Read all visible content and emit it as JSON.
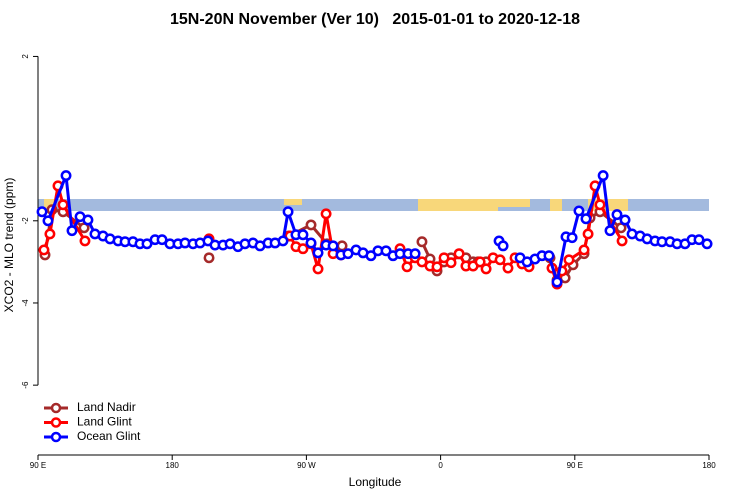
{
  "chart_data": {
    "type": "line",
    "title": "15N-20N November (Ver 10)   2015-01-01 to 2020-12-18",
    "x_label": "Longitude",
    "y_label": "XCO2 - MLO trend (ppm)",
    "xlim": [
      90,
      540
    ],
    "xticks": [
      {
        "value": 90,
        "label": "90 E"
      },
      180,
      {
        "value": 270,
        "label": "90 W"
      },
      {
        "value": 360,
        "label": "0"
      },
      {
        "value": 450,
        "label": "90 E"
      },
      {
        "value": 540,
        "label": "180"
      }
    ],
    "ylim": [
      -7.7,
      2.4
    ],
    "yticks": [
      2,
      -2,
      -4,
      -6
    ],
    "legend": "lower left",
    "series": [
      {
        "name": "Land Nadir",
        "color": "#a52a2a",
        "x": [
          94.7,
          99.4,
          106.8,
          120.9,
          null,
          204.7,
          null,
          258.3,
          273.1,
          283.8,
          293.9,
          null,
          347.5,
          352.9,
          357.6,
          362.3,
          367,
          377,
          381.8,
          385.1,
          390.5,
          null,
          433.4,
          438.1,
          443.5,
          448.8,
          456.2,
          460.2,
          466.9,
          481
        ],
        "values": [
          -2.83,
          -1.73,
          -1.78,
          -2.17,
          null,
          -2.9,
          null,
          -2.37,
          -2.1,
          -2.56,
          -2.61,
          null,
          -2.51,
          -2.93,
          -3.22,
          -3.0,
          -2.9,
          -2.9,
          -3.0,
          -3.0,
          -3.0,
          null,
          -2.9,
          -3.44,
          -3.39,
          -3.07,
          -2.8,
          -1.93,
          -1.78,
          -2.17
        ]
      },
      {
        "name": "Land Glint",
        "color": "#ff0000",
        "x": [
          94,
          98,
          103.4,
          106.8,
          121.5,
          null,
          204.7,
          null,
          259,
          263,
          267.7,
          273.1,
          277.8,
          283.2,
          287.9,
          293.2,
          null,
          332.8,
          337.5,
          342.9,
          347.5,
          352.9,
          357.6,
          362.3,
          367,
          372.4,
          377,
          381.8,
          386.5,
          390.5,
          395.2,
          399.9,
          405.2,
          409.9,
          414.6,
          419.3,
          null,
          434.7,
          438.1,
          441.4,
          446.1,
          456.2,
          458.9,
          463.6,
          466.9,
          481.7
        ],
        "values": [
          -2.71,
          -2.32,
          -1.15,
          -1.61,
          -2.49,
          null,
          -2.44,
          null,
          -2.37,
          -2.63,
          -2.68,
          -2.56,
          -3.17,
          -1.83,
          -2.8,
          -2.83,
          null,
          -2.68,
          -3.12,
          -2.9,
          -3.0,
          -3.1,
          -3.12,
          -2.9,
          -3.02,
          -2.8,
          -3.1,
          -3.1,
          -3.0,
          -3.17,
          -2.9,
          -2.95,
          -3.15,
          -2.9,
          -3.05,
          -3.12,
          null,
          -3.15,
          -3.54,
          -3.22,
          -2.95,
          -2.71,
          -2.32,
          -1.15,
          -1.61,
          -2.49
        ]
      },
      {
        "name": "Ocean Glint",
        "color": "#0000ff",
        "x": [
          92.7,
          96.7,
          108.8,
          112.8,
          118.2,
          123.5,
          128.2,
          133.6,
          138.3,
          143.7,
          148.4,
          153.7,
          158.4,
          163.1,
          168.5,
          173.2,
          178.5,
          183.9,
          188.6,
          194,
          198.7,
          204,
          208.7,
          214.1,
          218.8,
          224.1,
          228.8,
          234.2,
          238.9,
          244.3,
          249,
          254.3,
          257.7,
          263,
          267.7,
          273.1,
          277.8,
          283.2,
          287.9,
          293.2,
          297.9,
          303.3,
          308,
          313.3,
          318,
          323.4,
          328.1,
          332.8,
          338.2,
          342.9,
          null,
          399.2,
          401.9,
          null,
          413.3,
          418,
          423.3,
          428,
          432.7,
          438.1,
          444.1,
          448.2,
          452.8,
          457.5,
          469,
          473.6,
          478.3,
          483.7,
          488.4,
          493.8,
          498.5,
          503.8,
          508.5,
          513.9,
          518.6,
          523.9,
          528.6,
          533.3,
          538.7
        ],
        "values": [
          -1.78,
          -2.0,
          -0.9,
          -2.24,
          -1.9,
          -1.98,
          -2.32,
          -2.37,
          -2.44,
          -2.49,
          -2.51,
          -2.51,
          -2.56,
          -2.56,
          -2.46,
          -2.46,
          -2.56,
          -2.56,
          -2.54,
          -2.56,
          -2.54,
          -2.49,
          -2.59,
          -2.59,
          -2.56,
          -2.63,
          -2.56,
          -2.54,
          -2.61,
          -2.54,
          -2.54,
          -2.49,
          -1.78,
          -2.34,
          -2.34,
          -2.54,
          -2.78,
          -2.59,
          -2.61,
          -2.83,
          -2.8,
          -2.71,
          -2.78,
          -2.85,
          -2.73,
          -2.73,
          -2.85,
          -2.8,
          -2.8,
          -2.8,
          null,
          -2.49,
          -2.61,
          null,
          -2.9,
          -3.0,
          -2.93,
          -2.85,
          -2.85,
          -3.49,
          -2.39,
          -2.41,
          -1.76,
          -1.95,
          -0.9,
          -2.24,
          -1.85,
          -1.98,
          -2.32,
          -2.37,
          -2.44,
          -2.49,
          -2.51,
          -2.51,
          -2.56,
          -2.56,
          -2.46,
          -2.46,
          -2.56
        ]
      }
    ]
  }
}
